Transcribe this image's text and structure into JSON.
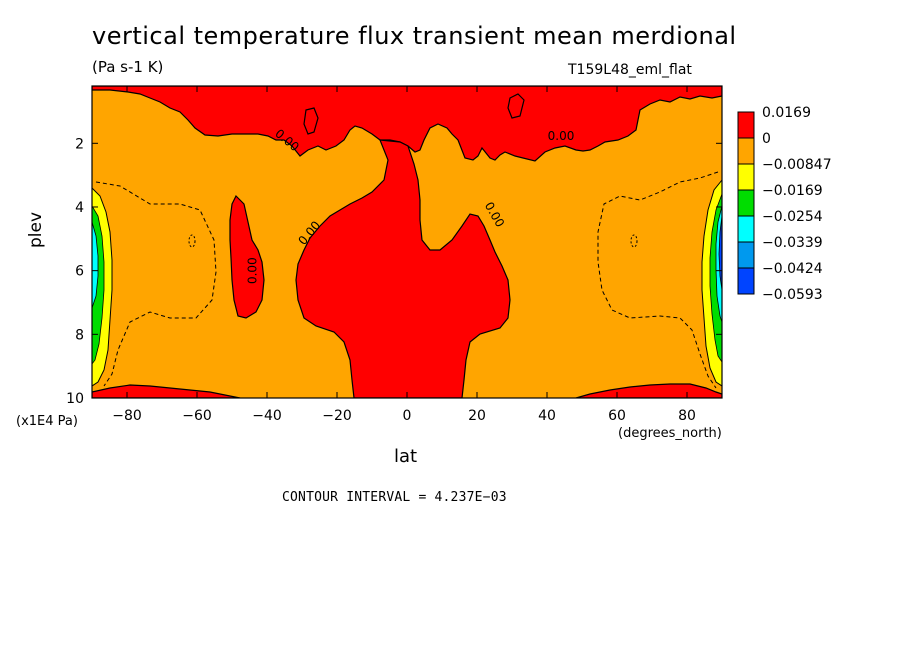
{
  "chart_data": {
    "type": "heatmap",
    "title": "vertical temperature flux transient mean merdional",
    "units": "(Pa s-1 K)",
    "model_label": "T159L48_eml_flat",
    "xlabel": "lat",
    "xunits": "(degrees_north)",
    "ylabel": "plev",
    "yunits": "(x1E4 Pa)",
    "xlim": [
      -90,
      90
    ],
    "ylim": [
      0.2,
      10
    ],
    "y_inverted": true,
    "x_ticks": [
      -80,
      -60,
      -40,
      -20,
      0,
      20,
      40,
      60,
      80
    ],
    "x_tick_labels": [
      "−80",
      "−60",
      "−40",
      "−20",
      "0",
      "20",
      "40",
      "60",
      "80"
    ],
    "y_ticks": [
      2,
      4,
      6,
      8,
      10
    ],
    "y_tick_labels": [
      "2",
      "4",
      "6",
      "8",
      "10"
    ],
    "contour_interval_text": "CONTOUR INTERVAL = 4.237E−03",
    "contour_labels": [
      {
        "text": "0.00",
        "lat": -35,
        "plev": 2.0
      },
      {
        "text": "0.00",
        "lat": -27,
        "plev": 4.9
      },
      {
        "text": "0.00",
        "lat": -43,
        "plev": 6.0
      },
      {
        "text": "0.00",
        "lat": 24,
        "plev": 4.3
      },
      {
        "text": "0.00",
        "lat": 44,
        "plev": 1.9
      }
    ],
    "legend": {
      "placement": "right",
      "levels": [
        {
          "label": "0.0169",
          "color": "#ff0000"
        },
        {
          "label": "0",
          "color": "#ffa500"
        },
        {
          "label": "−0.00847",
          "color": "#ffff00"
        },
        {
          "label": "−0.0169",
          "color": "#00dd00"
        },
        {
          "label": "−0.0254",
          "color": "#00ffff"
        },
        {
          "label": "−0.0339",
          "color": "#0099ee"
        },
        {
          "label": "−0.0424",
          "color": "#0044ff"
        },
        {
          "label": "−0.0593",
          "color": ""
        }
      ]
    },
    "colors": {
      "positive": "#ff0000",
      "zero_to_neg": "#ffa500",
      "yellow": "#ffff00",
      "green": "#00dd00",
      "cyan": "#00ffff",
      "blue": "#0044ff"
    }
  }
}
